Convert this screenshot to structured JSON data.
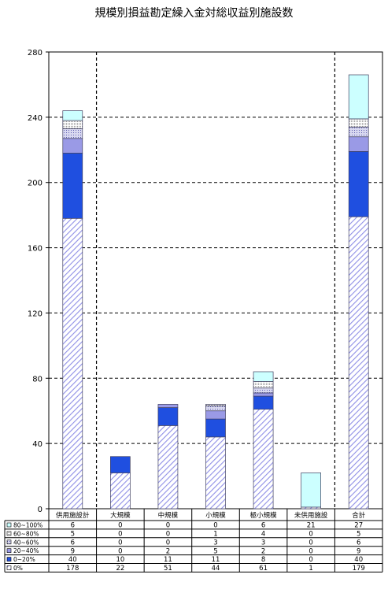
{
  "chart_data": {
    "type": "bar",
    "stacked": true,
    "title": "規模別損益勘定繰入金対総収益別施設数",
    "ylim": [
      0,
      280
    ],
    "yticks": [
      0,
      40,
      80,
      120,
      160,
      200,
      240,
      280
    ],
    "categories": [
      "供用施設計",
      "大規模",
      "中規模",
      "小規模",
      "極小規模",
      "未供用施設",
      "合計"
    ],
    "series": [
      {
        "name": "0%",
        "values": [
          178,
          22,
          51,
          44,
          61,
          1,
          179
        ],
        "fill": "hatch",
        "color": "#8f8fe6"
      },
      {
        "name": "0~20%",
        "values": [
          40,
          10,
          11,
          11,
          8,
          0,
          40
        ],
        "fill": "solid",
        "color": "#1f4fe0"
      },
      {
        "name": "20~40%",
        "values": [
          9,
          0,
          2,
          5,
          2,
          0,
          9
        ],
        "fill": "solid",
        "color": "#9a9ae6"
      },
      {
        "name": "40~60%",
        "values": [
          6,
          0,
          0,
          3,
          3,
          0,
          6
        ],
        "fill": "dots",
        "color": "#8080c0"
      },
      {
        "name": "60~80%",
        "values": [
          5,
          0,
          0,
          1,
          4,
          0,
          5
        ],
        "fill": "dots2",
        "color": "#808080"
      },
      {
        "name": "80~100%",
        "values": [
          6,
          0,
          0,
          0,
          6,
          21,
          27
        ],
        "fill": "solid",
        "color": "#ccffff"
      }
    ],
    "grid": true,
    "legend": "table-left"
  }
}
